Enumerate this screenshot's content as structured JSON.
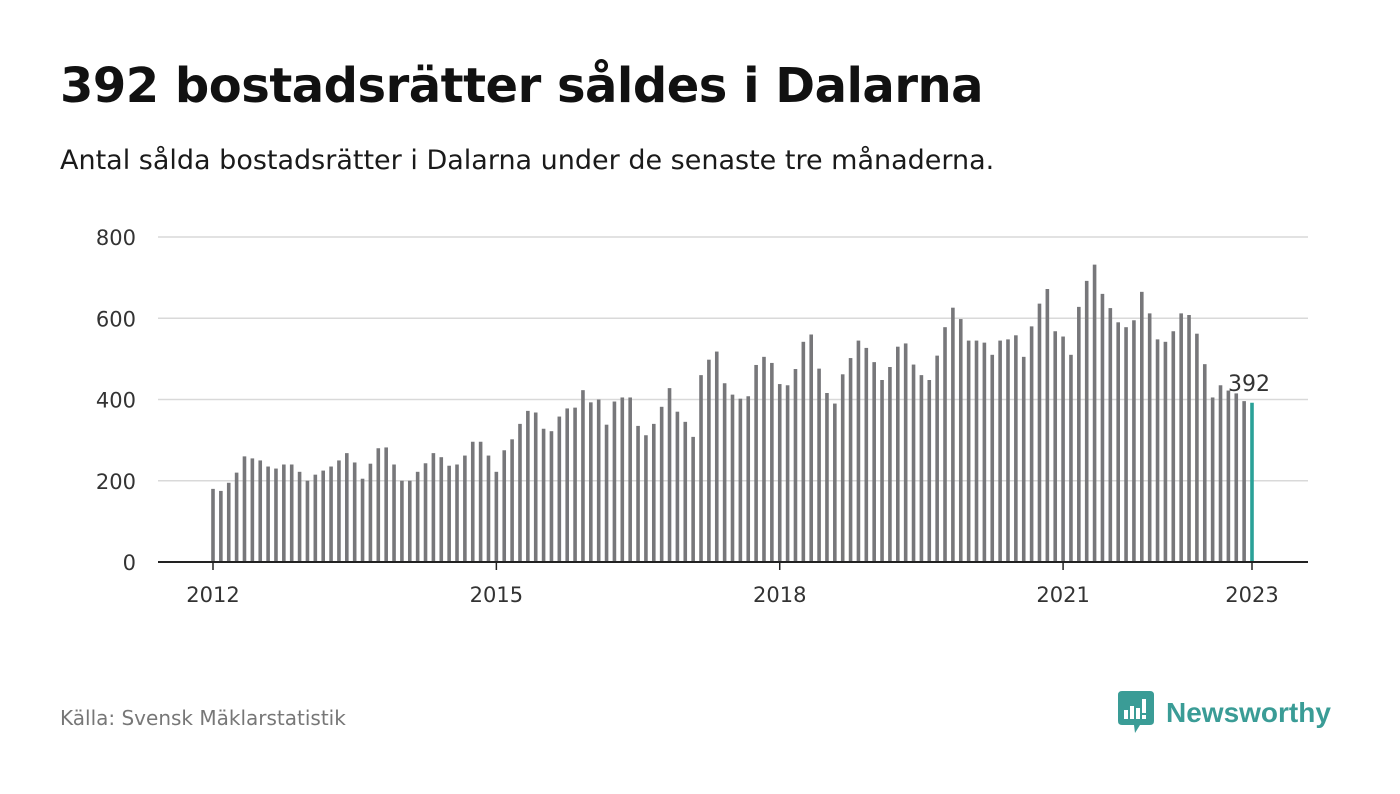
{
  "header": {
    "title": "392 bostadsrätter såldes i Dalarna",
    "subtitle": "Antal sålda bostadsrätter i Dalarna under de senaste tre månaderna."
  },
  "footer": {
    "source": "Källa: Svensk Mäklarstatistik",
    "brand": "Newsworthy",
    "brand_icon": "newsworthy-logo-icon"
  },
  "colors": {
    "bar": "#77777a",
    "highlight": "#2aa198",
    "grid": "#d9d9d9",
    "axis": "#222222",
    "brand": "#3a9c96"
  },
  "chart_data": {
    "type": "bar",
    "title": "",
    "xlabel": "",
    "ylabel": "",
    "ylim": [
      0,
      800
    ],
    "yticks": [
      0,
      200,
      400,
      600,
      800
    ],
    "grid": true,
    "x_start": "2012-01",
    "x_end": "2023-01",
    "xticks": [
      "2012",
      "2015",
      "2018",
      "2021",
      "2023"
    ],
    "highlight_label": "392",
    "values": [
      180,
      175,
      195,
      220,
      260,
      255,
      250,
      235,
      230,
      240,
      240,
      222,
      200,
      215,
      225,
      235,
      250,
      268,
      245,
      205,
      242,
      280,
      282,
      240,
      200,
      200,
      222,
      243,
      268,
      258,
      237,
      240,
      262,
      296,
      296,
      262,
      222,
      275,
      302,
      340,
      372,
      368,
      328,
      322,
      358,
      378,
      380,
      423,
      393,
      400,
      338,
      395,
      405,
      405,
      335,
      312,
      340,
      382,
      428,
      370,
      345,
      308,
      460,
      498,
      518,
      440,
      412,
      402,
      408,
      485,
      505,
      490,
      438,
      435,
      475,
      542,
      560,
      476,
      416,
      390,
      462,
      502,
      545,
      527,
      492,
      448,
      480,
      530,
      538,
      486,
      460,
      448,
      508,
      578,
      626,
      598,
      545,
      545,
      540,
      510,
      545,
      548,
      558,
      505,
      580,
      636,
      672,
      568,
      555,
      510,
      628,
      692,
      732,
      660,
      625,
      590,
      578,
      595,
      665,
      612,
      548,
      542,
      568,
      612,
      608,
      562,
      487,
      405,
      435,
      422,
      415,
      396,
      392
    ]
  }
}
